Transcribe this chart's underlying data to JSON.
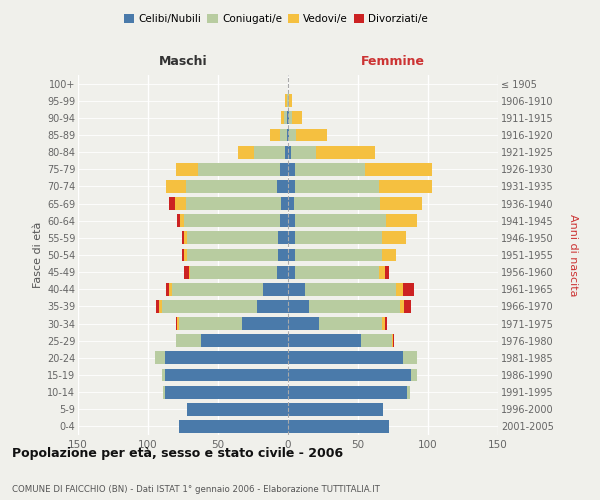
{
  "age_groups": [
    "0-4",
    "5-9",
    "10-14",
    "15-19",
    "20-24",
    "25-29",
    "30-34",
    "35-39",
    "40-44",
    "45-49",
    "50-54",
    "55-59",
    "60-64",
    "65-69",
    "70-74",
    "75-79",
    "80-84",
    "85-89",
    "90-94",
    "95-99",
    "100+"
  ],
  "birth_years": [
    "2001-2005",
    "1996-2000",
    "1991-1995",
    "1986-1990",
    "1981-1985",
    "1976-1980",
    "1971-1975",
    "1966-1970",
    "1961-1965",
    "1956-1960",
    "1951-1955",
    "1946-1950",
    "1941-1945",
    "1936-1940",
    "1931-1935",
    "1926-1930",
    "1921-1925",
    "1916-1920",
    "1911-1915",
    "1906-1910",
    "≤ 1905"
  ],
  "maschi": {
    "celibi": [
      78,
      72,
      88,
      88,
      88,
      62,
      33,
      22,
      18,
      8,
      7,
      7,
      6,
      5,
      8,
      6,
      2,
      1,
      1,
      0,
      0
    ],
    "coniugati": [
      0,
      0,
      1,
      2,
      7,
      18,
      45,
      68,
      65,
      62,
      65,
      65,
      68,
      68,
      65,
      58,
      22,
      5,
      2,
      1,
      0
    ],
    "vedovi": [
      0,
      0,
      0,
      0,
      0,
      0,
      1,
      2,
      2,
      1,
      2,
      2,
      3,
      8,
      14,
      16,
      12,
      7,
      2,
      1,
      0
    ],
    "divorziati": [
      0,
      0,
      0,
      0,
      0,
      0,
      1,
      2,
      2,
      3,
      2,
      2,
      2,
      4,
      0,
      0,
      0,
      0,
      0,
      0,
      0
    ]
  },
  "femmine": {
    "nubili": [
      72,
      68,
      85,
      88,
      82,
      52,
      22,
      15,
      12,
      5,
      5,
      5,
      5,
      4,
      5,
      5,
      2,
      1,
      1,
      0,
      0
    ],
    "coniugate": [
      0,
      0,
      2,
      4,
      10,
      22,
      45,
      65,
      65,
      60,
      62,
      62,
      65,
      62,
      60,
      50,
      18,
      5,
      2,
      1,
      0
    ],
    "vedove": [
      0,
      0,
      0,
      0,
      0,
      1,
      2,
      3,
      5,
      4,
      10,
      17,
      22,
      30,
      38,
      48,
      42,
      22,
      7,
      2,
      0
    ],
    "divorziate": [
      0,
      0,
      0,
      0,
      0,
      1,
      2,
      5,
      8,
      3,
      0,
      0,
      0,
      0,
      0,
      0,
      0,
      0,
      0,
      0,
      0
    ]
  },
  "color_celibe": "#4a7aaa",
  "color_coniugato": "#b8cca0",
  "color_vedovo": "#f5c040",
  "color_divorziato": "#cc2222",
  "title": "Popolazione per età, sesso e stato civile - 2006",
  "subtitle": "COMUNE DI FAICCHIO (BN) - Dati ISTAT 1° gennaio 2006 - Elaborazione TUTTITALIA.IT",
  "xlabel_left": "Maschi",
  "xlabel_right": "Femmine",
  "ylabel_left": "Fasce di età",
  "ylabel_right": "Anni di nascita",
  "xlim": 150,
  "bg_color": "#f0f0eb",
  "grid_color": "#ffffff"
}
